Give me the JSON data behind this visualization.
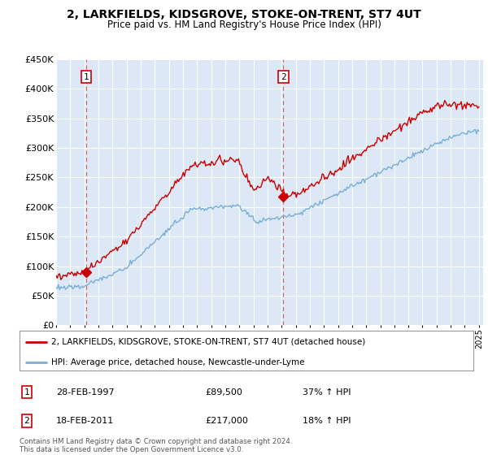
{
  "title": "2, LARKFIELDS, KIDSGROVE, STOKE-ON-TRENT, ST7 4UT",
  "subtitle": "Price paid vs. HM Land Registry's House Price Index (HPI)",
  "plot_bg_color": "#dce8f5",
  "legend_line1": "2, LARKFIELDS, KIDSGROVE, STOKE-ON-TRENT, ST7 4UT (detached house)",
  "legend_line2": "HPI: Average price, detached house, Newcastle-under-Lyme",
  "transaction1_date": "28-FEB-1997",
  "transaction1_price": "£89,500",
  "transaction1_hpi": "37% ↑ HPI",
  "transaction2_date": "18-FEB-2011",
  "transaction2_price": "£217,000",
  "transaction2_hpi": "18% ↑ HPI",
  "footer": "Contains HM Land Registry data © Crown copyright and database right 2024.\nThis data is licensed under the Open Government Licence v3.0.",
  "ylim": [
    0,
    450000
  ],
  "yticks": [
    0,
    50000,
    100000,
    150000,
    200000,
    250000,
    300000,
    350000,
    400000,
    450000
  ],
  "ytick_labels": [
    "£0",
    "£50K",
    "£100K",
    "£150K",
    "£200K",
    "£250K",
    "£300K",
    "£350K",
    "£400K",
    "£450K"
  ],
  "red_color": "#cc0000",
  "blue_color": "#7aaed6",
  "marker_color": "#cc0000",
  "vline_color": "#dd4444",
  "grid_color": "#ffffff",
  "transaction1_x": 1997.15,
  "transaction2_x": 2011.13,
  "transaction1_y": 89500,
  "transaction2_y": 217000,
  "xlim_left": 1995,
  "xlim_right": 2025.3
}
